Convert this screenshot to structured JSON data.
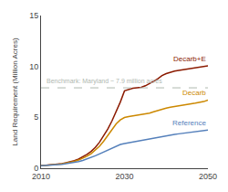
{
  "chart_data": {
    "type": "line",
    "title": "",
    "ylabel": "Land Requirement (Million Acres)",
    "xlim": [
      2010,
      2050
    ],
    "ylim": [
      0,
      15
    ],
    "xticks": [
      2010,
      2030,
      2050
    ],
    "yticks": [
      0,
      5,
      10,
      15
    ],
    "grid": false,
    "x": [
      2010,
      2011,
      2012,
      2013,
      2014,
      2015,
      2016,
      2017,
      2018,
      2019,
      2020,
      2021,
      2022,
      2023,
      2024,
      2025,
      2026,
      2027,
      2028,
      2029,
      2030,
      2031,
      2032,
      2033,
      2034,
      2035,
      2036,
      2037,
      2038,
      2039,
      2040,
      2041,
      2042,
      2043,
      2044,
      2045,
      2046,
      2047,
      2048,
      2049,
      2050
    ],
    "series": [
      {
        "name": "Decarb+E",
        "color": "#8B1A00",
        "values": [
          0.25,
          0.28,
          0.32,
          0.36,
          0.4,
          0.46,
          0.53,
          0.62,
          0.74,
          0.9,
          1.1,
          1.35,
          1.65,
          2.05,
          2.55,
          3.15,
          3.85,
          4.65,
          5.55,
          6.5,
          7.6,
          7.75,
          7.85,
          7.9,
          7.95,
          8.1,
          8.3,
          8.55,
          8.8,
          9.1,
          9.3,
          9.45,
          9.55,
          9.62,
          9.68,
          9.74,
          9.8,
          9.86,
          9.92,
          9.97,
          10.05
        ]
      },
      {
        "name": "Decarb",
        "color": "#CC8800",
        "values": [
          0.25,
          0.27,
          0.3,
          0.34,
          0.38,
          0.43,
          0.49,
          0.57,
          0.67,
          0.8,
          0.97,
          1.18,
          1.43,
          1.75,
          2.15,
          2.65,
          3.2,
          3.8,
          4.35,
          4.75,
          4.98,
          5.08,
          5.15,
          5.2,
          5.25,
          5.32,
          5.42,
          5.55,
          5.68,
          5.8,
          5.9,
          6.0,
          6.08,
          6.15,
          6.22,
          6.28,
          6.34,
          6.4,
          6.48,
          6.55,
          6.7
        ]
      },
      {
        "name": "Reference",
        "color": "#5580BB",
        "values": [
          0.25,
          0.27,
          0.29,
          0.32,
          0.35,
          0.39,
          0.44,
          0.5,
          0.57,
          0.66,
          0.77,
          0.9,
          1.05,
          1.22,
          1.4,
          1.6,
          1.8,
          2.0,
          2.18,
          2.33,
          2.42,
          2.5,
          2.58,
          2.65,
          2.72,
          2.8,
          2.88,
          2.96,
          3.04,
          3.12,
          3.2,
          3.27,
          3.33,
          3.38,
          3.43,
          3.48,
          3.53,
          3.58,
          3.63,
          3.68,
          3.75
        ]
      }
    ],
    "reference_lines": [
      {
        "y": 7.9,
        "label": "Benchmark: Maryland ~ 7.9 million acres",
        "color": "#b0b8b0",
        "line_style": "dashed"
      }
    ]
  }
}
